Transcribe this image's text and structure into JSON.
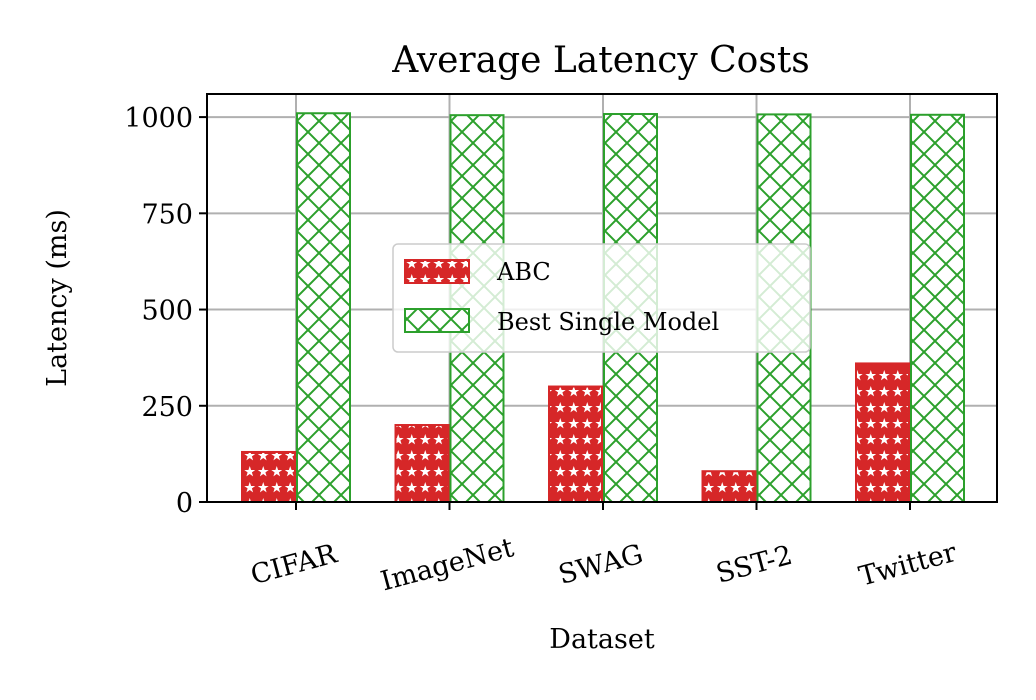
{
  "chart_data": {
    "type": "bar",
    "title": "Average Latency Costs",
    "xlabel": "Dataset",
    "ylabel": "Latency (ms)",
    "categories": [
      "CIFAR",
      "ImageNet",
      "SWAG",
      "SST-2",
      "Twitter"
    ],
    "series": [
      {
        "name": "ABC",
        "color": "#d62728",
        "hatch": "stars",
        "values": [
          130,
          200,
          300,
          80,
          360
        ]
      },
      {
        "name": "Best Single Model",
        "color": "#2ca02c",
        "hatch": "crosshatch",
        "values": [
          1010,
          1005,
          1008,
          1007,
          1006
        ]
      }
    ],
    "ylim": [
      0,
      1060
    ],
    "yticks": [
      0,
      250,
      500,
      750,
      1000
    ],
    "grid": true,
    "legend_position": "center"
  }
}
